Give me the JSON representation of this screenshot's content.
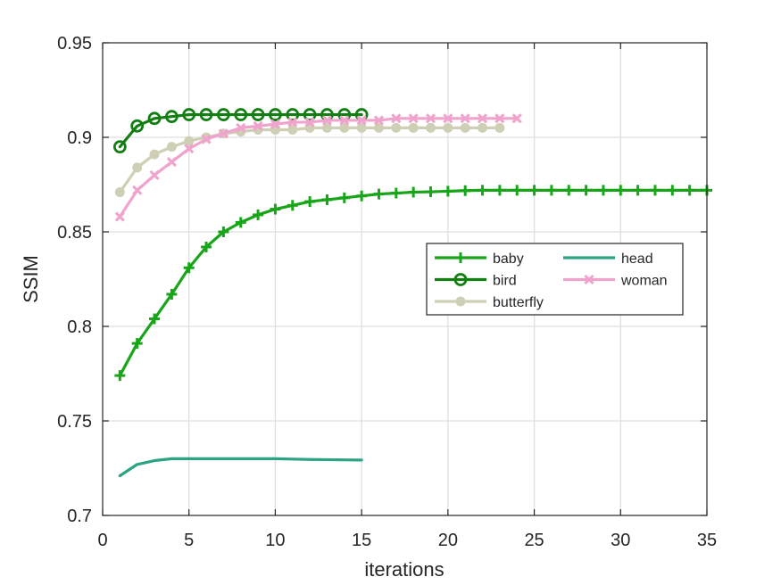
{
  "chart_data": {
    "type": "line",
    "xlabel": "iterations",
    "ylabel": "SSIM",
    "xlim": [
      0,
      35
    ],
    "ylim": [
      0.7,
      0.95
    ],
    "xticks": [
      0,
      5,
      10,
      15,
      20,
      25,
      30,
      35
    ],
    "yticks": [
      0.7,
      0.75,
      0.8,
      0.85,
      0.9,
      0.95
    ],
    "xtick_labels": [
      "0",
      "5",
      "10",
      "15",
      "20",
      "25",
      "30",
      "35"
    ],
    "ytick_labels": [
      "0.7",
      "0.75",
      "0.8",
      "0.85",
      "0.9",
      "0.95"
    ],
    "grid": true,
    "legend_position": "right",
    "series": [
      {
        "name": "baby",
        "color": "#19a519",
        "marker": "plus",
        "x": [
          1,
          2,
          3,
          4,
          5,
          6,
          7,
          8,
          9,
          10,
          11,
          12,
          13,
          14,
          15,
          16,
          17,
          18,
          19,
          20,
          21,
          22,
          23,
          24,
          25,
          26,
          27,
          28,
          29,
          30,
          31,
          32,
          33,
          34,
          35
        ],
        "y": [
          0.774,
          0.791,
          0.804,
          0.817,
          0.831,
          0.842,
          0.85,
          0.855,
          0.859,
          0.862,
          0.864,
          0.866,
          0.867,
          0.868,
          0.869,
          0.87,
          0.8705,
          0.871,
          0.8712,
          0.8715,
          0.8718,
          0.872,
          0.872,
          0.872,
          0.872,
          0.872,
          0.872,
          0.872,
          0.872,
          0.872,
          0.872,
          0.872,
          0.872,
          0.872,
          0.872
        ]
      },
      {
        "name": "bird",
        "color": "#137f13",
        "marker": "circle",
        "x": [
          1,
          2,
          3,
          4,
          5,
          6,
          7,
          8,
          9,
          10,
          11,
          12,
          13,
          14,
          15
        ],
        "y": [
          0.895,
          0.906,
          0.91,
          0.911,
          0.912,
          0.912,
          0.912,
          0.912,
          0.912,
          0.912,
          0.912,
          0.912,
          0.912,
          0.912,
          0.912
        ]
      },
      {
        "name": "butterfly",
        "color": "#cfcfb6",
        "marker": "dot",
        "x": [
          1,
          2,
          3,
          4,
          5,
          6,
          7,
          8,
          9,
          10,
          11,
          12,
          13,
          14,
          15,
          16,
          17,
          18,
          19,
          20,
          21,
          22,
          23
        ],
        "y": [
          0.871,
          0.884,
          0.891,
          0.895,
          0.898,
          0.9,
          0.902,
          0.903,
          0.904,
          0.904,
          0.904,
          0.905,
          0.905,
          0.905,
          0.905,
          0.905,
          0.905,
          0.905,
          0.905,
          0.905,
          0.905,
          0.905,
          0.905
        ]
      },
      {
        "name": "head",
        "color": "#2ba384",
        "marker": "none",
        "x": [
          1,
          2,
          3,
          4,
          5,
          6,
          7,
          8,
          9,
          10,
          11,
          12,
          13,
          14,
          15
        ],
        "y": [
          0.721,
          0.727,
          0.729,
          0.73,
          0.73,
          0.73,
          0.73,
          0.73,
          0.73,
          0.73,
          0.7298,
          0.7296,
          0.7295,
          0.7294,
          0.7293
        ]
      },
      {
        "name": "woman",
        "color": "#f0a3cc",
        "marker": "x",
        "x": [
          1,
          2,
          3,
          4,
          5,
          6,
          7,
          8,
          9,
          10,
          11,
          12,
          13,
          14,
          15,
          16,
          17,
          18,
          19,
          20,
          21,
          22,
          23,
          24
        ],
        "y": [
          0.858,
          0.872,
          0.88,
          0.887,
          0.894,
          0.899,
          0.902,
          0.905,
          0.906,
          0.907,
          0.908,
          0.908,
          0.909,
          0.909,
          0.909,
          0.909,
          0.91,
          0.91,
          0.91,
          0.91,
          0.91,
          0.91,
          0.91,
          0.91
        ]
      }
    ]
  }
}
